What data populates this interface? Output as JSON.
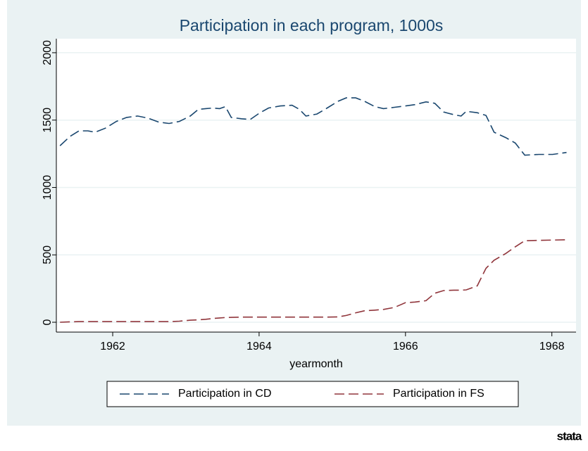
{
  "chart_data": {
    "type": "line",
    "title": "Participation in each program, 1000s",
    "x_label": "yearmonth",
    "x": [
      1961.28,
      1961.42,
      1961.54,
      1961.66,
      1961.76,
      1961.9,
      1962.05,
      1962.19,
      1962.34,
      1962.48,
      1962.63,
      1962.77,
      1962.91,
      1963.06,
      1963.17,
      1963.27,
      1963.37,
      1963.46,
      1963.54,
      1963.62,
      1963.76,
      1963.88,
      1964.0,
      1964.13,
      1964.29,
      1964.45,
      1964.55,
      1964.64,
      1964.79,
      1964.93,
      1965.08,
      1965.19,
      1965.32,
      1965.44,
      1965.58,
      1965.7,
      1965.85,
      1966.0,
      1966.13,
      1966.28,
      1966.4,
      1966.52,
      1966.66,
      1966.76,
      1966.83,
      1966.98,
      1967.1,
      1967.21,
      1967.37,
      1967.5,
      1967.63,
      1967.82,
      1968.01,
      1968.2
    ],
    "series": [
      {
        "name": "Participation in CD",
        "color": "#1a476f",
        "values": [
          1310,
          1380,
          1420,
          1420,
          1410,
          1440,
          1490,
          1520,
          1530,
          1515,
          1485,
          1475,
          1490,
          1530,
          1580,
          1585,
          1590,
          1585,
          1600,
          1520,
          1510,
          1505,
          1550,
          1590,
          1605,
          1610,
          1580,
          1530,
          1545,
          1590,
          1640,
          1665,
          1665,
          1640,
          1600,
          1585,
          1595,
          1605,
          1615,
          1635,
          1625,
          1560,
          1540,
          1530,
          1565,
          1555,
          1535,
          1410,
          1370,
          1330,
          1240,
          1245,
          1245,
          1260
        ]
      },
      {
        "name": "Participation in FS",
        "color": "#90353b",
        "values": [
          0,
          3,
          5,
          5,
          5,
          5,
          5,
          5,
          5,
          5,
          5,
          5,
          8,
          15,
          18,
          22,
          28,
          32,
          35,
          36,
          38,
          38,
          38,
          38,
          38,
          38,
          38,
          38,
          38,
          38,
          40,
          50,
          70,
          85,
          90,
          95,
          110,
          145,
          150,
          160,
          215,
          235,
          238,
          238,
          240,
          270,
          400,
          460,
          510,
          560,
          605,
          608,
          610,
          612
        ]
      }
    ],
    "xlim": [
      1961.23,
      1968.33
    ],
    "xticks": [
      1962,
      1964,
      1966,
      1968
    ],
    "ylim": [
      -73,
      2104
    ],
    "yticks": [
      0,
      500,
      1000,
      1500,
      2000
    ],
    "grid": true,
    "legend": "bottom"
  },
  "logo": "stata"
}
